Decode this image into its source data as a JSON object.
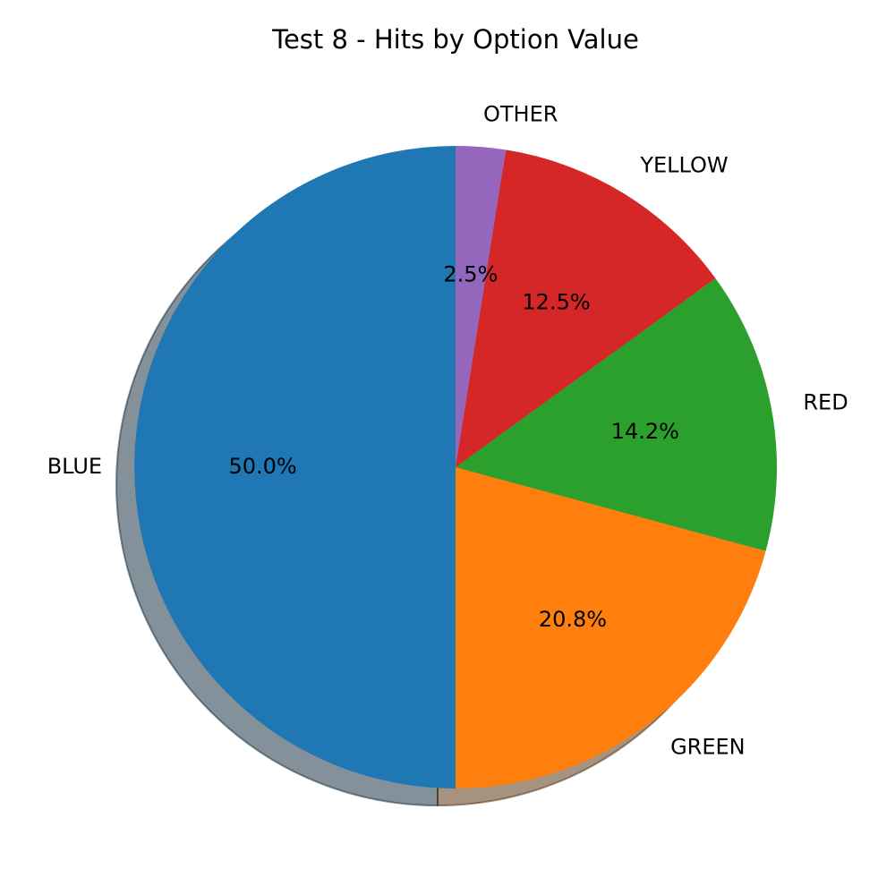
{
  "chart_data": {
    "type": "pie",
    "title": "Test 8 - Hits by Option Value",
    "categories": [
      "BLUE",
      "GREEN",
      "RED",
      "YELLOW",
      "OTHER"
    ],
    "values": [
      50.0,
      20.8,
      14.2,
      12.5,
      2.5
    ],
    "value_labels": [
      "50.0%",
      "20.8%",
      "14.2%",
      "12.5%",
      "2.5%"
    ],
    "colors": [
      "#1f77b4",
      "#ff7f0e",
      "#2ca02c",
      "#d62728",
      "#9467bd"
    ],
    "start_angle": 90,
    "shadow": true
  }
}
